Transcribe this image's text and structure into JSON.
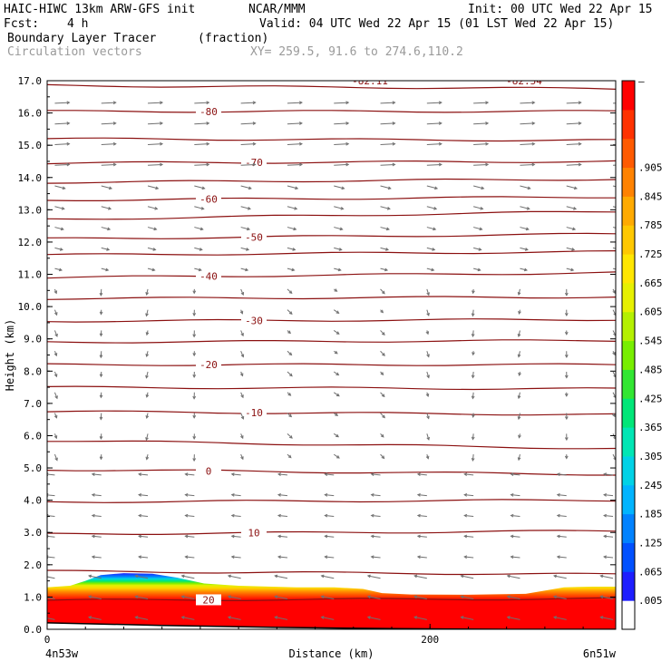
{
  "header": {
    "model": "HAIC-HIWC 13km ARW-GFS init",
    "org": "NCAR/MMM",
    "init": "Init: 00 UTC Wed 22 Apr 15",
    "fcst_label": "Fcst:",
    "fcst_value": "4 h",
    "valid": "Valid: 04 UTC Wed 22 Apr 15 (01 LST Wed 22 Apr 15)",
    "field": "Boundary Layer Tracer",
    "field_units": "(fraction)",
    "vectors": "Circulation vectors",
    "xy": "XY= 259.5, 91.6 to 274.6,110.2"
  },
  "chart_data": {
    "type": "heatmap",
    "xlabel": "Distance (km)",
    "ylabel": "Height (km)",
    "xlim": [
      0,
      297
    ],
    "ylim": [
      0,
      17
    ],
    "x_ticks": [
      0,
      200
    ],
    "x_end_labels": {
      "left": "4n53w",
      "right": "6n51w"
    },
    "y_ticks": [
      "0.0",
      "1.0",
      "2.0",
      "3.0",
      "4.0",
      "5.0",
      "6.0",
      "7.0",
      "8.0",
      "9.0",
      "10.0",
      "11.0",
      "12.0",
      "13.0",
      "14.0",
      "15.0",
      "16.0",
      "17.0"
    ],
    "colorbar": {
      "labels": [
        ".005",
        ".065",
        ".125",
        ".185",
        ".245",
        ".305",
        ".365",
        ".425",
        ".485",
        ".545",
        ".605",
        ".665",
        ".725",
        ".785",
        ".845",
        ".905"
      ],
      "top_label": "–",
      "colors": [
        "#ffffff",
        "#1e1eff",
        "#0050ff",
        "#0082ff",
        "#00b4ff",
        "#00d2e6",
        "#00e6b4",
        "#00e678",
        "#32e632",
        "#78ee00",
        "#b4f000",
        "#e6f000",
        "#ffe600",
        "#ffc800",
        "#ffaa00",
        "#ff8200",
        "#ff5a00",
        "#ff3200",
        "#ff0000"
      ]
    },
    "tracer_top_km": [
      [
        0,
        1.3
      ],
      [
        12,
        1.35
      ],
      [
        20,
        1.5
      ],
      [
        28,
        1.68
      ],
      [
        40,
        1.74
      ],
      [
        55,
        1.72
      ],
      [
        68,
        1.6
      ],
      [
        82,
        1.42
      ],
      [
        100,
        1.35
      ],
      [
        130,
        1.3
      ],
      [
        150,
        1.3
      ],
      [
        165,
        1.25
      ],
      [
        175,
        1.12
      ],
      [
        190,
        1.08
      ],
      [
        220,
        1.07
      ],
      [
        250,
        1.1
      ],
      [
        262,
        1.22
      ],
      [
        270,
        1.3
      ],
      [
        285,
        1.32
      ],
      [
        297,
        1.32
      ]
    ],
    "terrain_km": [
      [
        0,
        0.2
      ],
      [
        60,
        0.12
      ],
      [
        120,
        0.06
      ],
      [
        180,
        0.02
      ],
      [
        240,
        0.0
      ],
      [
        297,
        0.0
      ]
    ],
    "temperature_isotherms": {
      "levels_km": [
        {
          "z": [
            0.9,
            0.95
          ],
          "label": "20"
        },
        {
          "z": [
            1.8,
            1.7
          ]
        },
        {
          "z": [
            2.95,
            3.05
          ],
          "label": "10"
        },
        {
          "z": [
            3.95,
            4.0
          ]
        },
        {
          "z": [
            4.95,
            4.8
          ],
          "label": "0"
        },
        {
          "z": [
            5.85,
            5.6
          ]
        },
        {
          "z": [
            6.75,
            6.65
          ],
          "label": "-10"
        },
        {
          "z": [
            7.5,
            7.45
          ]
        },
        {
          "z": [
            8.2,
            8.2
          ],
          "label": "-20"
        },
        {
          "z": [
            8.9,
            8.95
          ]
        },
        {
          "z": [
            9.55,
            9.6
          ],
          "label": "-30"
        },
        {
          "z": [
            10.25,
            10.3
          ]
        },
        {
          "z": [
            10.9,
            11.05
          ],
          "label": "-40"
        },
        {
          "z": [
            11.6,
            11.7
          ]
        },
        {
          "z": [
            12.1,
            12.25
          ],
          "label": "-50"
        },
        {
          "z": [
            12.7,
            12.95
          ]
        },
        {
          "z": [
            13.3,
            13.4
          ],
          "label": "-60"
        },
        {
          "z": [
            13.85,
            13.95
          ]
        },
        {
          "z": [
            14.45,
            14.5
          ],
          "label": "-70"
        },
        {
          "z": [
            15.2,
            15.15
          ]
        },
        {
          "z": [
            16.05,
            16.05
          ],
          "label": "-80"
        },
        {
          "z": [
            16.85,
            16.75
          ]
        }
      ],
      "top_labels": [
        "-82.11",
        "-82.54"
      ]
    }
  }
}
